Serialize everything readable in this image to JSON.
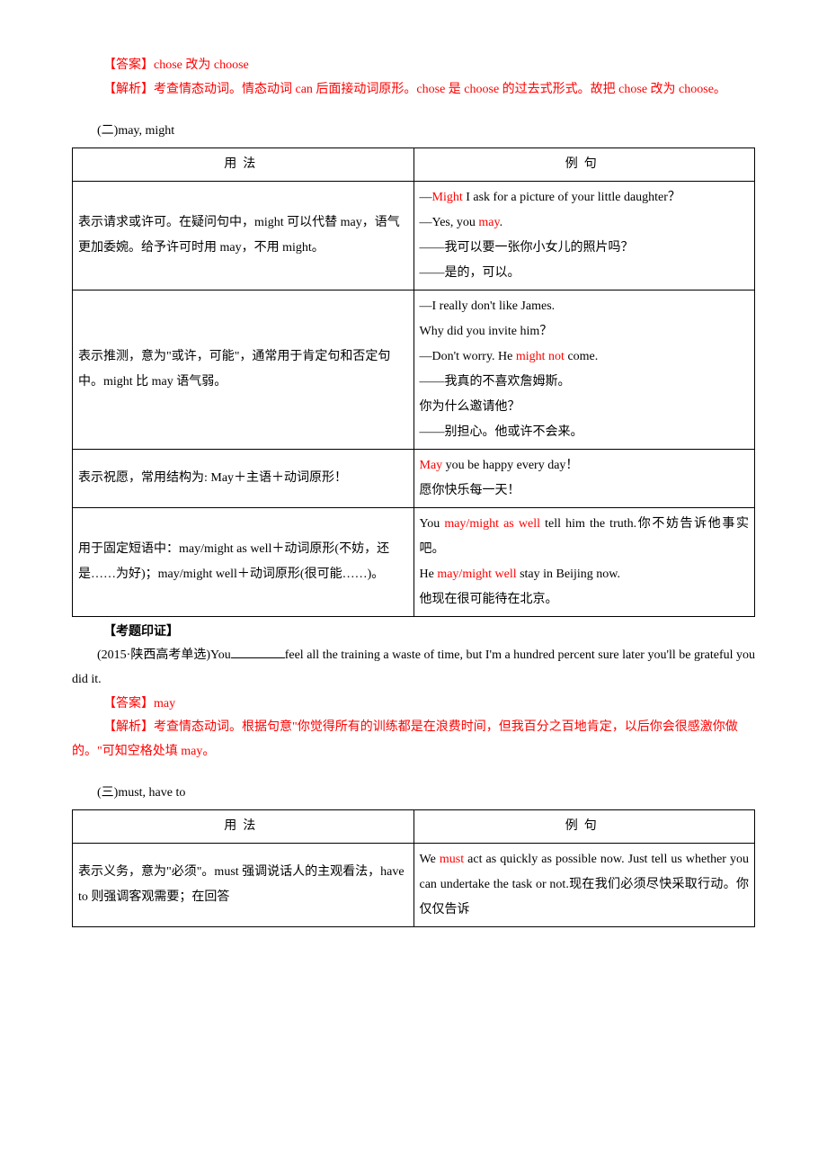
{
  "answer1": {
    "label": "【答案】",
    "text": "chose 改为 choose"
  },
  "analysis1": {
    "label": "【解析】",
    "text": "考查情态动词。情态动词 can 后面接动词原形。chose 是 choose 的过去式形式。故把 chose 改为 choose。"
  },
  "section2": {
    "title": "(二)may, might",
    "headers": {
      "usage": "用法",
      "example": "例句"
    },
    "rows": [
      {
        "usage": "表示请求或许可。在疑问句中，might 可以代替 may，语气更加委婉。给予许可时用 may，不用 might。",
        "example_parts": [
          {
            "pre": "—",
            "red": "Might",
            "post": " I ask for a picture of your little daughter？"
          },
          {
            "pre": "—Yes, you ",
            "red": "may",
            "post": "."
          },
          {
            "pre": "——我可以要一张你小女儿的照片吗？",
            "red": "",
            "post": ""
          },
          {
            "pre": "——是的，可以。",
            "red": "",
            "post": ""
          }
        ]
      },
      {
        "usage": "表示推测，意为\"或许，可能\"，通常用于肯定句和否定句中。might 比 may 语气弱。",
        "example_parts": [
          {
            "pre": "—I really don't like James.",
            "red": "",
            "post": ""
          },
          {
            "pre": "Why did you invite him？",
            "red": "",
            "post": ""
          },
          {
            "pre": "—Don't worry. He ",
            "red": "might not",
            "post": " come."
          },
          {
            "pre": "——我真的不喜欢詹姆斯。",
            "red": "",
            "post": ""
          },
          {
            "pre": "你为什么邀请他？",
            "red": "",
            "post": ""
          },
          {
            "pre": "——别担心。他或许不会来。",
            "red": "",
            "post": ""
          }
        ]
      },
      {
        "usage": "表示祝愿，常用结构为: May＋主语＋动词原形！",
        "example_parts": [
          {
            "pre": "",
            "red": "May",
            "post": " you be happy every day！"
          },
          {
            "pre": "愿你快乐每一天！",
            "red": "",
            "post": ""
          }
        ]
      },
      {
        "usage": "用于固定短语中：may/might as well＋动词原形(不妨，还是……为好)；may/might well＋动词原形(很可能……)。",
        "example_parts": [
          {
            "pre": "You ",
            "red": "may/might as well",
            "post": " tell him the truth.你不妨告诉他事实吧。"
          },
          {
            "pre": "He ",
            "red": "may/might well",
            "post": " stay in Beijing now."
          },
          {
            "pre": "他现在很可能待在北京。",
            "red": "",
            "post": ""
          }
        ]
      }
    ]
  },
  "verify": {
    "label": "【考题印证】",
    "question_pre": "(2015·陕西高考单选)You",
    "question_post": "feel all the training a waste of time, but I'm a hundred percent sure later you'll be grateful you did it."
  },
  "answer2": {
    "label": "【答案】",
    "text": "may"
  },
  "analysis2": {
    "label": "【解析】",
    "text": "考查情态动词。根据句意\"你觉得所有的训练都是在浪费时间，但我百分之百地肯定，以后你会很感激你做的。\"可知空格处填 may。"
  },
  "section3": {
    "title": "(三)must, have to",
    "headers": {
      "usage": "用法",
      "example": "例句"
    },
    "rows": [
      {
        "usage": "表示义务，意为\"必须\"。must 强调说话人的主观看法，have to 则强调客观需要；在回答",
        "example_parts": [
          {
            "pre": "We ",
            "red": "must",
            "post": " act as quickly as possible now. Just tell us whether you can undertake the task or not.现在我们必须尽快采取行动。你仅仅告诉"
          }
        ]
      }
    ]
  }
}
